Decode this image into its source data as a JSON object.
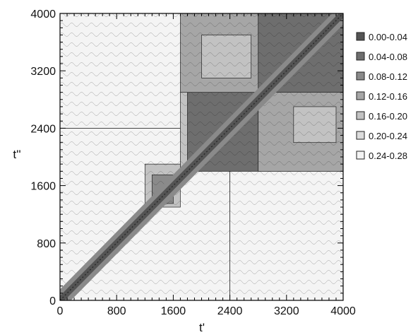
{
  "chart_data": {
    "type": "heatmap",
    "title": "",
    "xlabel": "t'",
    "ylabel": "t''",
    "xlim": [
      0,
      4000
    ],
    "ylim": [
      0,
      4000
    ],
    "xticks": [
      "0",
      "800",
      "1600",
      "2400",
      "3200",
      "4000"
    ],
    "yticks": [
      "0",
      "800",
      "1600",
      "2400",
      "3200",
      "4000"
    ],
    "xtick_values": [
      0,
      800,
      1600,
      2400,
      3200,
      4000
    ],
    "ytick_values": [
      0,
      800,
      1600,
      2400,
      3200,
      4000
    ],
    "minor_tick_step": 100,
    "grid": false,
    "legend_position": "right",
    "legend": [
      {
        "label": "0.00-0.04",
        "color": "#545454"
      },
      {
        "label": "0.04-0.08",
        "color": "#6e6e6e"
      },
      {
        "label": "0.08-0.12",
        "color": "#8a8a8a"
      },
      {
        "label": "0.12-0.16",
        "color": "#a6a6a6"
      },
      {
        "label": "0.16-0.20",
        "color": "#c2c2c2"
      },
      {
        "label": "0.20-0.24",
        "color": "#dcdcdc"
      },
      {
        "label": "0.24-0.28",
        "color": "#f4f4f4"
      }
    ],
    "regions": [
      {
        "x": [
          0,
          2400
        ],
        "y": [
          0,
          2400
        ],
        "level": 0.24
      },
      {
        "x": [
          2400,
          4000
        ],
        "y": [
          0,
          2400
        ],
        "level": 0.24
      },
      {
        "x": [
          0,
          2400
        ],
        "y": [
          2400,
          4000
        ],
        "level": 0.24
      },
      {
        "x": [
          1200,
          1700
        ],
        "y": [
          1300,
          1900
        ],
        "level": 0.19
      },
      {
        "x": [
          1300,
          1600
        ],
        "y": [
          1350,
          1750
        ],
        "level": 0.1
      },
      {
        "x": [
          1700,
          4000
        ],
        "y": [
          1800,
          2900
        ],
        "level": 0.16
      },
      {
        "x": [
          1800,
          2800
        ],
        "y": [
          1800,
          2900
        ],
        "level": 0.07
      },
      {
        "x": [
          2800,
          4000
        ],
        "y": [
          1800,
          4000
        ],
        "level": 0.13
      },
      {
        "x": [
          2800,
          4000
        ],
        "y": [
          2900,
          4000
        ],
        "level": 0.05
      },
      {
        "x": [
          1700,
          2800
        ],
        "y": [
          2900,
          4000
        ],
        "level": 0.15
      },
      {
        "x": [
          3300,
          3900
        ],
        "y": [
          2200,
          2700
        ],
        "level": 0.18
      },
      {
        "x": [
          2000,
          2700
        ],
        "y": [
          3100,
          3700
        ],
        "level": 0.18
      }
    ],
    "diagonal_band_level": 0.02,
    "diagonal_halo_level": 0.1
  }
}
